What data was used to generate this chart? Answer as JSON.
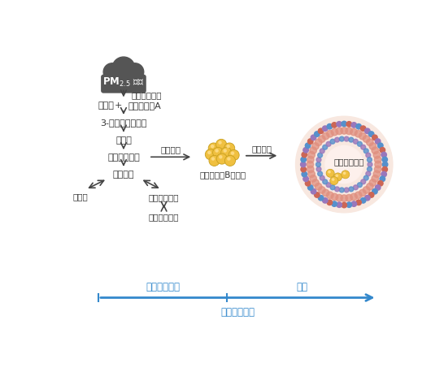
{
  "background_color": "#ffffff",
  "cloud_color": "#555555",
  "arrow_color": "#444444",
  "text_color": "#333333",
  "blue_arrow_color": "#3388cc",
  "timeline_label": "暴露时间窗口",
  "short_term_label": "短期、中短期",
  "long_term_label": "长期",
  "text_promote_sphingo": "促进鳞脂合成",
  "text_serine": "丝氨酸",
  "text_plus": "+",
  "text_palmitoyl": "棕榈酰辅鉦A",
  "text_3keto": "3-酱基二氢鳞氨鉦",
  "text_sphinganine": "鳞氨鉦",
  "text_dhceramide": "二氢神经酰胺",
  "text_ceramide": "神经酰胺",
  "text_promote_synth": "促进合成",
  "text_lipoprotein": "含载脂蛋白B脂蛋白",
  "text_increase_risk": "增大风险",
  "text_atherosclerosis": "动脉粥样硬化",
  "text_sphingomyelin": "鳞磷脂",
  "text_hex_ceramide": "己糖神经酰胺",
  "text_lac_ceramide": "乳糖神经酰胺",
  "lipid_ball_color": "#f0c040",
  "lipid_ball_outline": "#c8a020",
  "lipid_ball_highlight": "#ffe090",
  "dot_blue": "#5590cc",
  "dot_red": "#cc6655",
  "dot_purple": "#9977bb",
  "ring_pink": "#e09080",
  "bg_circle_color": "#f8e8e0",
  "fig_width": 5.46,
  "fig_height": 4.64,
  "dpi": 100
}
